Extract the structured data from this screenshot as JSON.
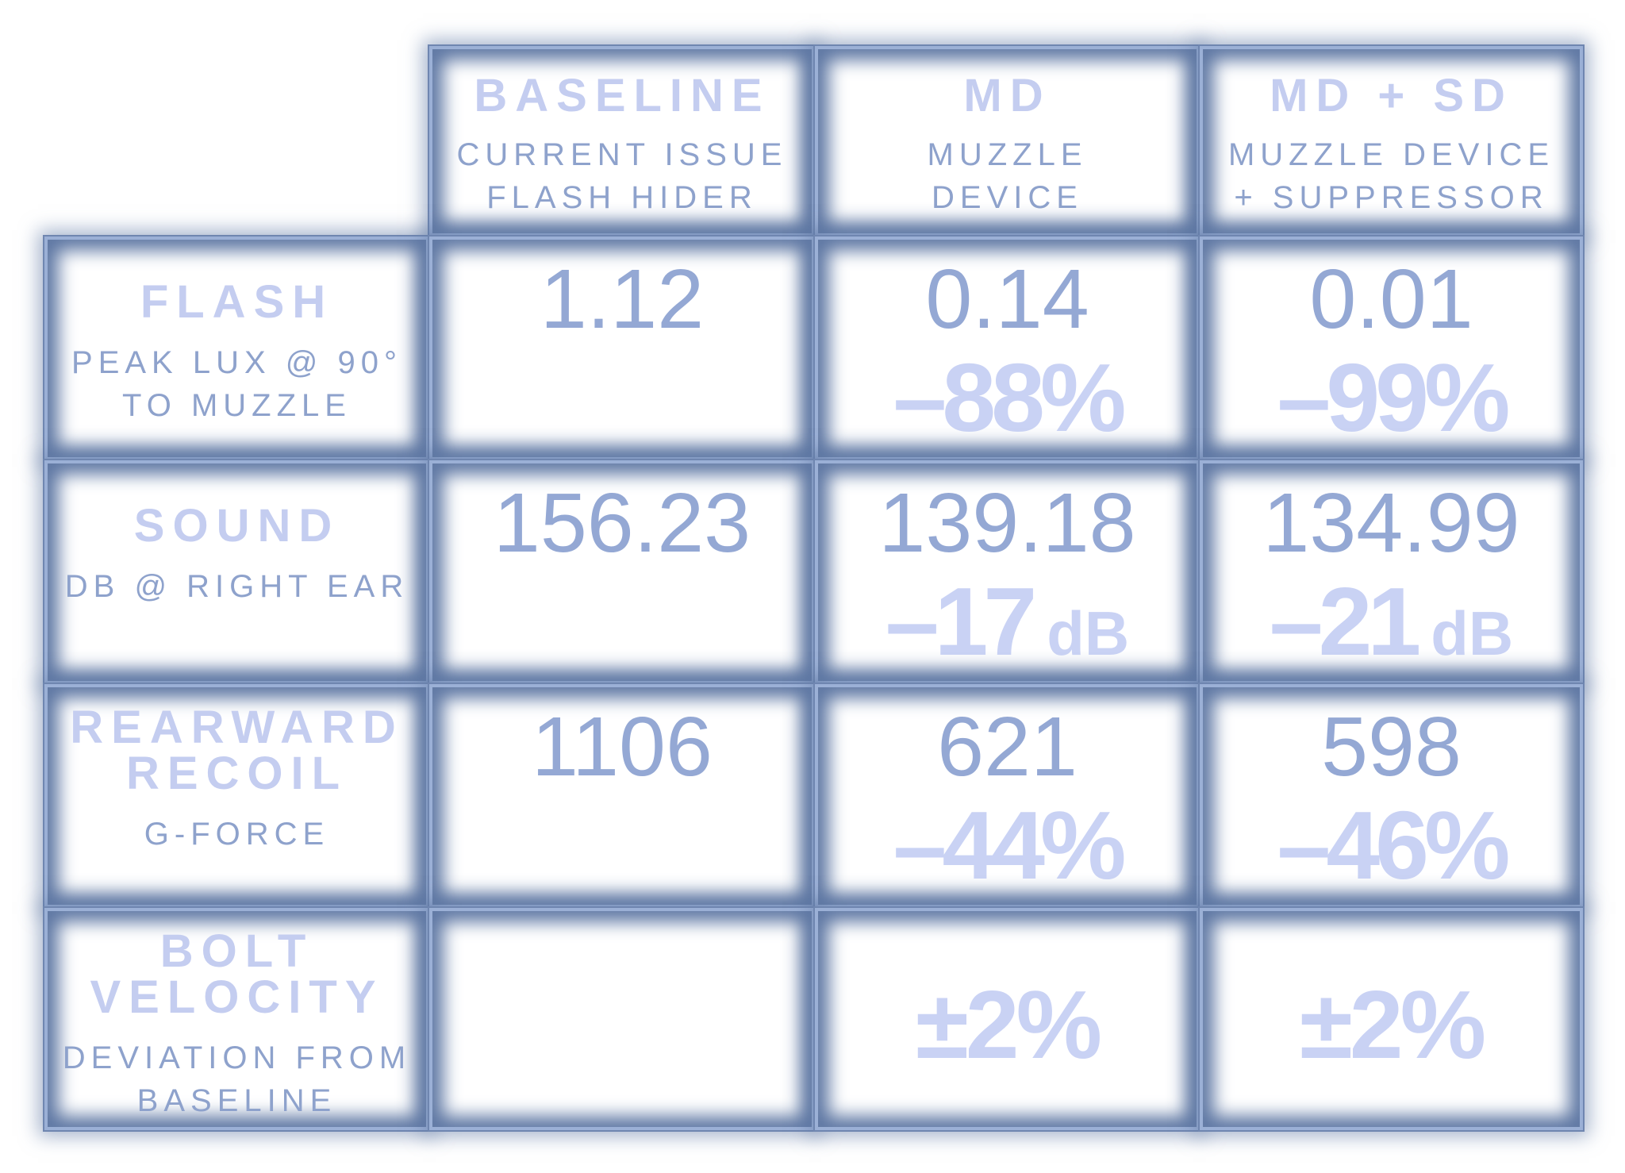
{
  "chart_data": {
    "type": "table",
    "columns": [
      {
        "title": "BASELINE",
        "subtitle": "CURRENT ISSUE\nFLASH HIDER"
      },
      {
        "title": "MD",
        "subtitle": "MUZZLE\nDEVICE"
      },
      {
        "title": "MD + SD",
        "subtitle": "MUZZLE DEVICE\n+ SUPPRESSOR"
      }
    ],
    "rows": [
      {
        "title": "FLASH",
        "subtitle": "PEAK LUX @ 90°\nTO MUZZLE",
        "values": [
          "1.12",
          "0.14",
          "0.01"
        ],
        "deltas": [
          "",
          "–88%",
          "–99%"
        ],
        "delta_units": [
          "",
          "",
          ""
        ]
      },
      {
        "title": "SOUND",
        "subtitle": "DB @ RIGHT EAR",
        "values": [
          "156.23",
          "139.18",
          "134.99"
        ],
        "deltas": [
          "",
          "–17",
          "–21"
        ],
        "delta_units": [
          "",
          "dB",
          "dB"
        ]
      },
      {
        "title": "REARWARD\nRECOIL",
        "subtitle": "G-FORCE",
        "values": [
          "1106",
          "621",
          "598"
        ],
        "deltas": [
          "",
          "–44%",
          "–46%"
        ],
        "delta_units": [
          "",
          "",
          ""
        ]
      },
      {
        "title": "BOLT\nVELOCITY",
        "subtitle": "DEVIATION FROM\nBASELINE",
        "values": [
          "",
          "",
          ""
        ],
        "deltas": [
          "",
          "±2%",
          "±2%"
        ],
        "delta_units": [
          "",
          "",
          ""
        ]
      }
    ],
    "colors": {
      "frame": "#6f86b0",
      "title_text": "#c4cdf0",
      "value_text": "#94a8d4",
      "delta_text": "#c9d2f4"
    }
  }
}
